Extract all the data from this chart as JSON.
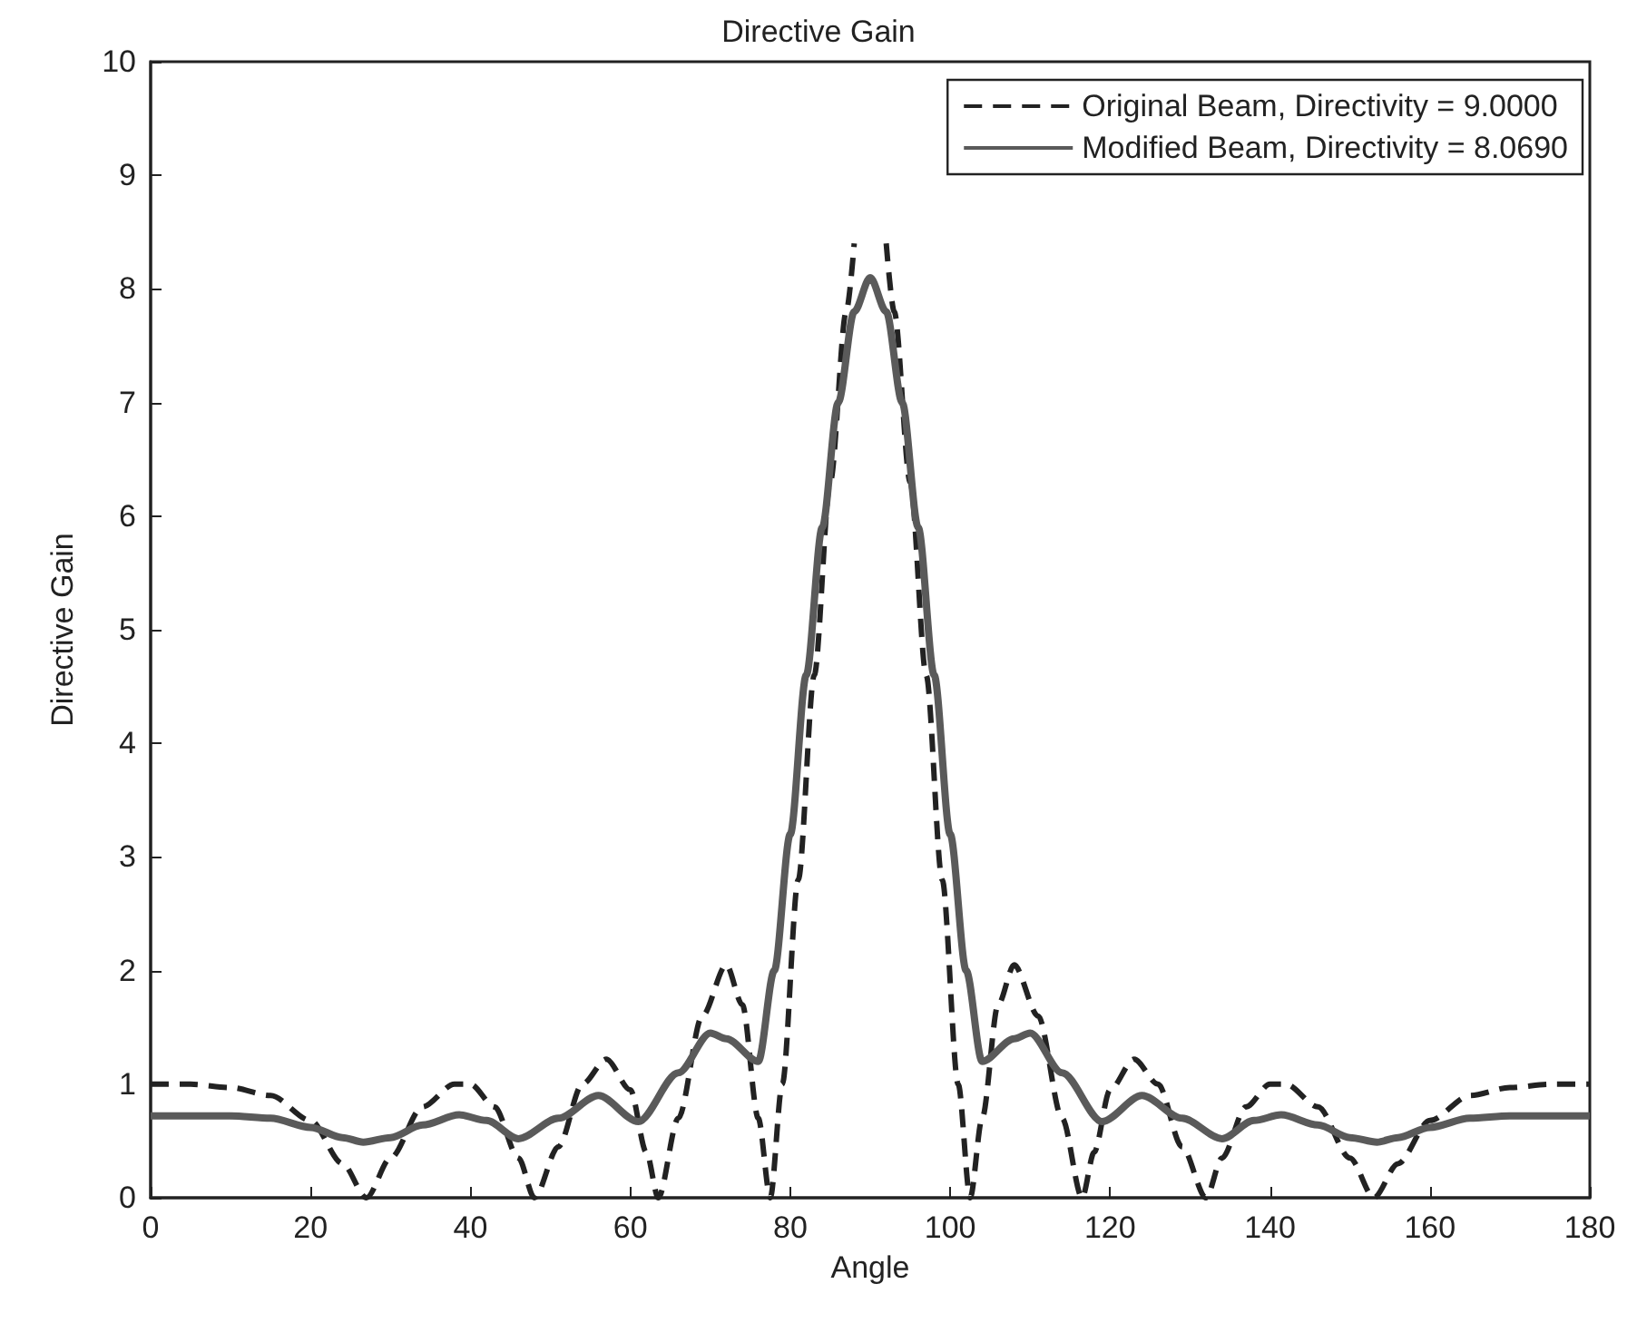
{
  "chart_data": {
    "type": "line",
    "title": "Directive Gain",
    "xlabel": "Angle",
    "ylabel": "Directive Gain",
    "xlim": [
      0,
      180
    ],
    "xticks": [
      0,
      20,
      40,
      60,
      80,
      100,
      120,
      140,
      160,
      180
    ],
    "ylim": [
      0,
      10
    ],
    "yticks": [
      0,
      1,
      2,
      3,
      4,
      5,
      6,
      7,
      8,
      9,
      10
    ],
    "grid": false,
    "legend": "top right",
    "marker": "none",
    "series": [
      {
        "name": "Original Beam, Directivity = 9.0000",
        "color": "#222222",
        "line_style": "dashed",
        "x": [
          0,
          5,
          10,
          15,
          20,
          24,
          27,
          30,
          34,
          38,
          40,
          43,
          46,
          48,
          51,
          54,
          57,
          60,
          62,
          63.5,
          66,
          69,
          72,
          74,
          76,
          77.5,
          79,
          81,
          83,
          85,
          87,
          88,
          90,
          92,
          93,
          95,
          97,
          99,
          101,
          102.5,
          104,
          106,
          108,
          111,
          114,
          116.5,
          118,
          120,
          123,
          126,
          129,
          132,
          134,
          137,
          140,
          142,
          146,
          150,
          153,
          156,
          160,
          165,
          170,
          175,
          180
        ],
        "values": [
          1.0,
          1.0,
          0.97,
          0.9,
          0.68,
          0.3,
          0,
          0.35,
          0.8,
          1.0,
          1.0,
          0.8,
          0.35,
          0,
          0.45,
          1.0,
          1.22,
          0.95,
          0.4,
          0,
          0.7,
          1.6,
          2.05,
          1.7,
          0.7,
          0,
          1.0,
          2.8,
          4.6,
          6.3,
          7.8,
          8.4,
          null,
          8.4,
          7.8,
          6.3,
          4.6,
          2.8,
          1.0,
          0,
          0.7,
          1.7,
          2.05,
          1.6,
          0.7,
          0,
          0.4,
          0.95,
          1.22,
          1.0,
          0.45,
          0,
          0.35,
          0.8,
          1.0,
          1.0,
          0.8,
          0.35,
          0,
          0.3,
          0.68,
          0.9,
          0.97,
          1.0,
          1.0
        ]
      },
      {
        "name": "Modified Beam, Directivity = 8.0690",
        "color": "#5a5a5a",
        "line_style": "solid",
        "x": [
          0,
          5,
          10,
          15,
          20,
          24,
          26.6,
          30,
          34,
          38.6,
          42,
          46,
          51,
          56,
          61,
          66,
          70,
          72,
          76,
          78,
          80,
          82,
          84,
          86,
          88,
          90,
          92,
          94,
          96,
          98,
          100,
          102,
          104,
          108,
          110,
          114,
          119,
          124,
          129,
          134,
          138,
          141.4,
          146,
          150,
          153.4,
          156,
          160,
          165,
          170,
          175,
          180
        ],
        "values": [
          0.72,
          0.72,
          0.72,
          0.7,
          0.62,
          0.53,
          0.49,
          0.53,
          0.64,
          0.73,
          0.68,
          0.52,
          0.7,
          0.9,
          0.67,
          1.1,
          1.45,
          1.4,
          1.2,
          2.0,
          3.2,
          4.6,
          5.9,
          7.0,
          7.8,
          8.1,
          7.8,
          7.0,
          5.9,
          4.6,
          3.2,
          2.0,
          1.2,
          1.4,
          1.45,
          1.1,
          0.67,
          0.9,
          0.7,
          0.52,
          0.68,
          0.73,
          0.64,
          0.53,
          0.49,
          0.53,
          0.62,
          0.7,
          0.72,
          0.72,
          0.72
        ]
      }
    ]
  }
}
